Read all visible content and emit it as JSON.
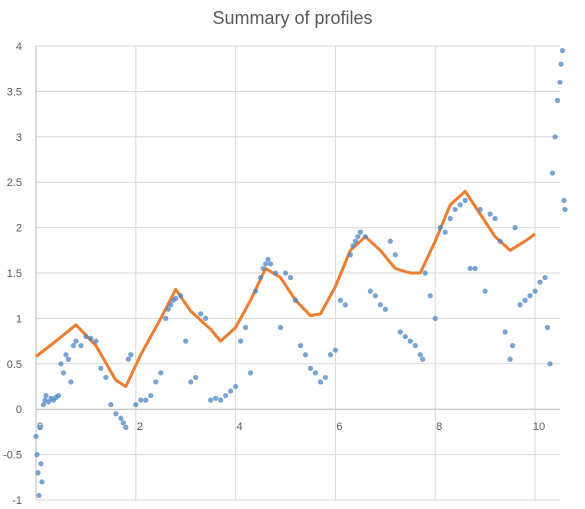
{
  "chart_data": {
    "type": "scatter",
    "title": "Summary of profiles",
    "xlabel": "",
    "ylabel": "",
    "xlim": [
      0,
      10.5
    ],
    "ylim": [
      -1,
      4
    ],
    "x_ticks": [
      0,
      2,
      4,
      6,
      8,
      10
    ],
    "y_ticks": [
      -1,
      -0.5,
      0,
      0.5,
      1,
      1.5,
      2,
      2.5,
      3,
      3.5,
      4
    ],
    "x_tick_labels": [
      "0",
      "2",
      "4",
      "6",
      "8",
      "10"
    ],
    "y_tick_labels": [
      "-1",
      "-0.5",
      "0",
      "0.5",
      "1",
      "1.5",
      "2",
      "2.5",
      "3",
      "3.5",
      "4"
    ],
    "grid": true,
    "legend": "none",
    "series": [
      {
        "kind": "scatter",
        "color": "#4a86c5",
        "points": [
          [
            0.0,
            -0.3
          ],
          [
            0.02,
            -0.5
          ],
          [
            0.04,
            -0.7
          ],
          [
            0.06,
            -0.95
          ],
          [
            0.08,
            -0.2
          ],
          [
            0.1,
            -0.6
          ],
          [
            0.12,
            -0.8
          ],
          [
            0.15,
            0.05
          ],
          [
            0.18,
            0.1
          ],
          [
            0.2,
            0.15
          ],
          [
            0.25,
            0.08
          ],
          [
            0.3,
            0.12
          ],
          [
            0.35,
            0.1
          ],
          [
            0.4,
            0.13
          ],
          [
            0.45,
            0.15
          ],
          [
            0.5,
            0.5
          ],
          [
            0.55,
            0.4
          ],
          [
            0.6,
            0.6
          ],
          [
            0.65,
            0.55
          ],
          [
            0.7,
            0.3
          ],
          [
            0.75,
            0.7
          ],
          [
            0.8,
            0.75
          ],
          [
            0.9,
            0.7
          ],
          [
            1.0,
            0.8
          ],
          [
            1.1,
            0.78
          ],
          [
            1.2,
            0.75
          ],
          [
            1.3,
            0.45
          ],
          [
            1.4,
            0.35
          ],
          [
            1.5,
            0.05
          ],
          [
            1.6,
            -0.05
          ],
          [
            1.7,
            -0.1
          ],
          [
            1.75,
            -0.15
          ],
          [
            1.8,
            -0.2
          ],
          [
            1.85,
            0.55
          ],
          [
            1.9,
            0.6
          ],
          [
            2.0,
            0.05
          ],
          [
            2.1,
            0.1
          ],
          [
            2.2,
            0.1
          ],
          [
            2.3,
            0.15
          ],
          [
            2.4,
            0.3
          ],
          [
            2.5,
            0.4
          ],
          [
            2.6,
            1.0
          ],
          [
            2.65,
            1.1
          ],
          [
            2.7,
            1.15
          ],
          [
            2.75,
            1.2
          ],
          [
            2.8,
            1.22
          ],
          [
            2.9,
            1.25
          ],
          [
            3.0,
            0.75
          ],
          [
            3.1,
            0.3
          ],
          [
            3.2,
            0.35
          ],
          [
            3.3,
            1.05
          ],
          [
            3.4,
            1.0
          ],
          [
            3.5,
            0.1
          ],
          [
            3.6,
            0.12
          ],
          [
            3.7,
            0.1
          ],
          [
            3.8,
            0.15
          ],
          [
            3.9,
            0.2
          ],
          [
            4.0,
            0.25
          ],
          [
            4.1,
            0.75
          ],
          [
            4.2,
            0.9
          ],
          [
            4.3,
            0.4
          ],
          [
            4.4,
            1.3
          ],
          [
            4.5,
            1.45
          ],
          [
            4.55,
            1.55
          ],
          [
            4.6,
            1.6
          ],
          [
            4.65,
            1.65
          ],
          [
            4.7,
            1.6
          ],
          [
            4.8,
            1.5
          ],
          [
            4.9,
            0.9
          ],
          [
            5.0,
            1.5
          ],
          [
            5.1,
            1.45
          ],
          [
            5.2,
            1.2
          ],
          [
            5.3,
            0.7
          ],
          [
            5.4,
            0.6
          ],
          [
            5.5,
            0.45
          ],
          [
            5.6,
            0.4
          ],
          [
            5.7,
            0.3
          ],
          [
            5.8,
            0.35
          ],
          [
            5.9,
            0.6
          ],
          [
            6.0,
            0.65
          ],
          [
            6.1,
            1.2
          ],
          [
            6.2,
            1.15
          ],
          [
            6.3,
            1.7
          ],
          [
            6.35,
            1.8
          ],
          [
            6.4,
            1.85
          ],
          [
            6.45,
            1.9
          ],
          [
            6.5,
            1.95
          ],
          [
            6.6,
            1.9
          ],
          [
            6.7,
            1.3
          ],
          [
            6.8,
            1.25
          ],
          [
            6.9,
            1.15
          ],
          [
            7.0,
            1.1
          ],
          [
            7.1,
            1.85
          ],
          [
            7.2,
            1.7
          ],
          [
            7.3,
            0.85
          ],
          [
            7.4,
            0.8
          ],
          [
            7.5,
            0.75
          ],
          [
            7.6,
            0.7
          ],
          [
            7.7,
            0.6
          ],
          [
            7.75,
            0.55
          ],
          [
            7.8,
            1.5
          ],
          [
            7.9,
            1.25
          ],
          [
            8.0,
            1.0
          ],
          [
            8.1,
            2.0
          ],
          [
            8.2,
            1.95
          ],
          [
            8.3,
            2.1
          ],
          [
            8.4,
            2.2
          ],
          [
            8.5,
            2.25
          ],
          [
            8.6,
            2.3
          ],
          [
            8.7,
            1.55
          ],
          [
            8.8,
            1.55
          ],
          [
            8.9,
            2.2
          ],
          [
            9.0,
            1.3
          ],
          [
            9.1,
            2.15
          ],
          [
            9.2,
            2.1
          ],
          [
            9.3,
            1.85
          ],
          [
            9.4,
            0.85
          ],
          [
            9.5,
            0.55
          ],
          [
            9.55,
            0.7
          ],
          [
            9.6,
            2.0
          ],
          [
            9.7,
            1.15
          ],
          [
            9.8,
            1.2
          ],
          [
            9.9,
            1.25
          ],
          [
            10.0,
            1.3
          ],
          [
            10.1,
            1.4
          ],
          [
            10.2,
            1.45
          ],
          [
            10.25,
            0.9
          ],
          [
            10.3,
            0.5
          ],
          [
            10.35,
            2.6
          ],
          [
            10.4,
            3.0
          ],
          [
            10.45,
            3.4
          ],
          [
            10.5,
            3.6
          ],
          [
            10.52,
            3.8
          ],
          [
            10.55,
            3.95
          ],
          [
            10.58,
            2.3
          ],
          [
            10.6,
            2.2
          ]
        ]
      },
      {
        "kind": "line",
        "color": "#ed7d31",
        "points": [
          [
            0.0,
            0.58
          ],
          [
            0.4,
            0.75
          ],
          [
            0.8,
            0.93
          ],
          [
            1.2,
            0.7
          ],
          [
            1.6,
            0.32
          ],
          [
            1.8,
            0.25
          ],
          [
            2.1,
            0.6
          ],
          [
            2.5,
            1.0
          ],
          [
            2.8,
            1.32
          ],
          [
            3.1,
            1.08
          ],
          [
            3.5,
            0.88
          ],
          [
            3.7,
            0.75
          ],
          [
            4.0,
            0.9
          ],
          [
            4.3,
            1.2
          ],
          [
            4.6,
            1.55
          ],
          [
            4.9,
            1.45
          ],
          [
            5.2,
            1.2
          ],
          [
            5.5,
            1.03
          ],
          [
            5.7,
            1.05
          ],
          [
            6.0,
            1.35
          ],
          [
            6.3,
            1.75
          ],
          [
            6.6,
            1.9
          ],
          [
            6.9,
            1.75
          ],
          [
            7.2,
            1.55
          ],
          [
            7.5,
            1.5
          ],
          [
            7.7,
            1.5
          ],
          [
            8.0,
            1.85
          ],
          [
            8.3,
            2.25
          ],
          [
            8.6,
            2.4
          ],
          [
            8.9,
            2.15
          ],
          [
            9.2,
            1.9
          ],
          [
            9.5,
            1.75
          ],
          [
            9.8,
            1.85
          ],
          [
            10.0,
            1.93
          ]
        ]
      }
    ]
  }
}
